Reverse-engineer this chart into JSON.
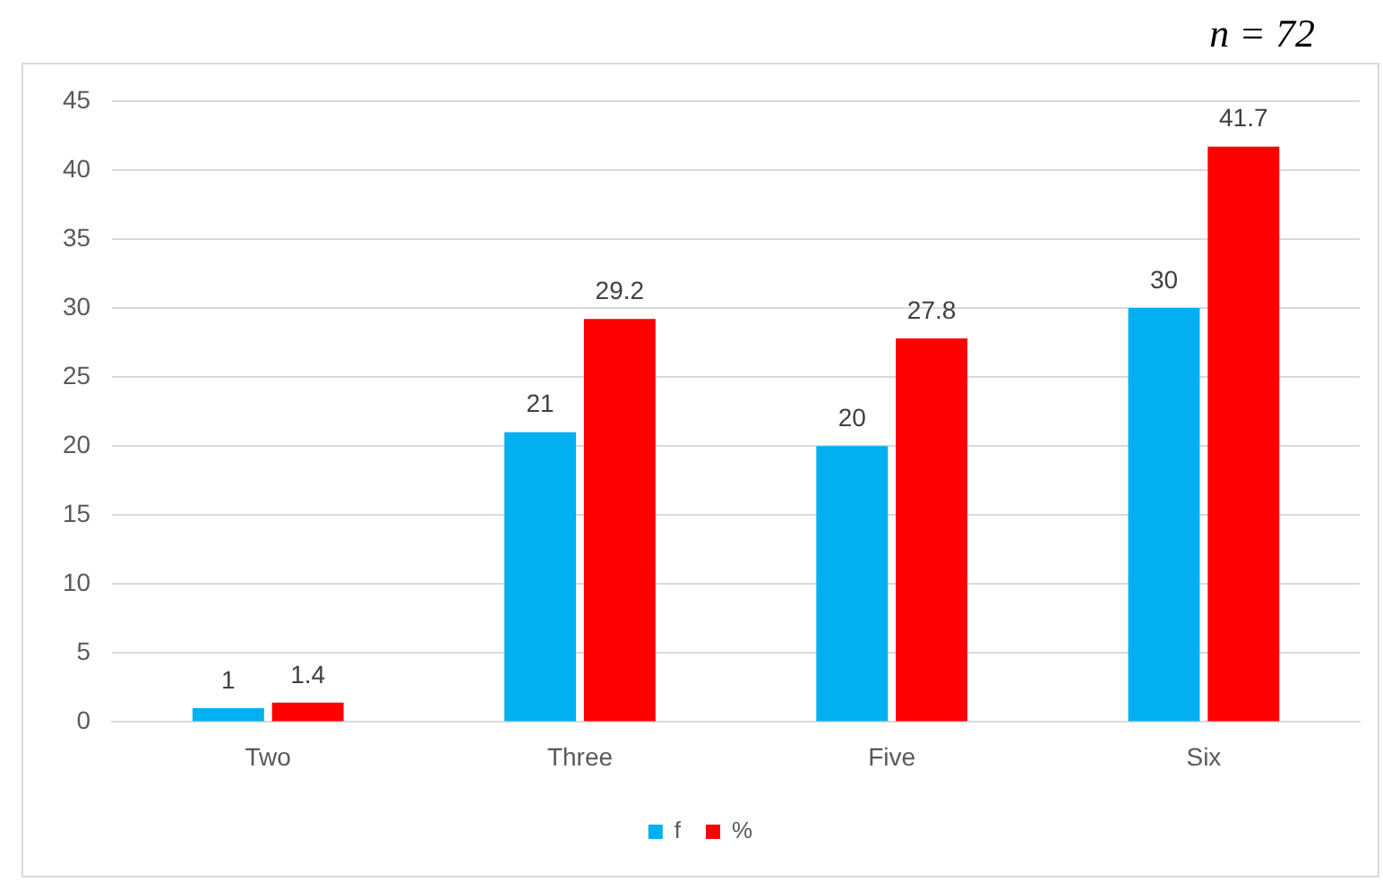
{
  "chart_data": {
    "type": "bar",
    "annotations": [
      "n = 72"
    ],
    "categories": [
      "Two",
      "Three",
      "Five",
      "Six"
    ],
    "series": [
      {
        "name": "f",
        "color": "#00b0f0",
        "values": [
          1,
          21,
          20,
          30
        ]
      },
      {
        "name": "%",
        "color": "#ff0000",
        "values": [
          1.4,
          29.2,
          27.8,
          41.7
        ]
      }
    ],
    "ylim": [
      0,
      45
    ],
    "yticks": [
      0,
      5,
      10,
      15,
      20,
      25,
      30,
      35,
      40,
      45
    ],
    "grid": "y",
    "legend": "bottom",
    "data_labels": true
  }
}
